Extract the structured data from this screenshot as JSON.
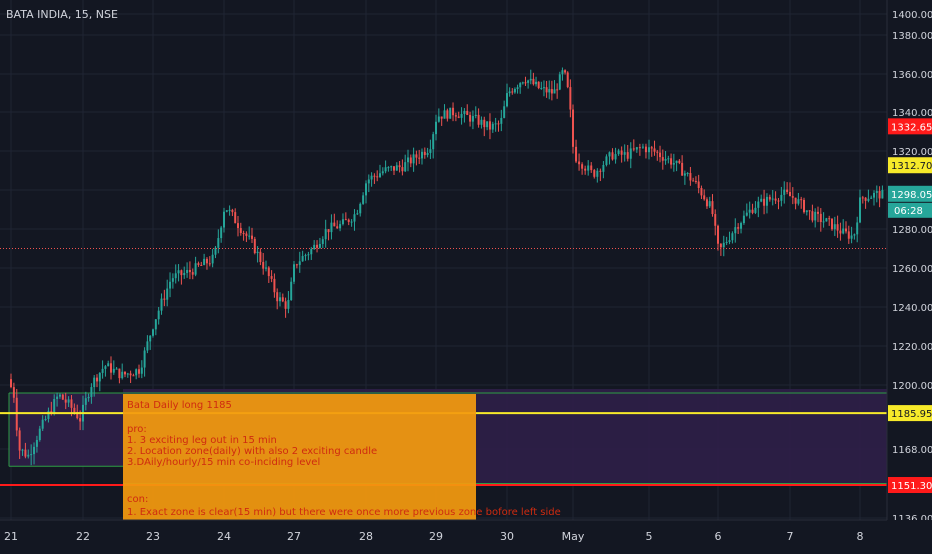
{
  "header": {
    "symbol_title": "BATA INDIA, 15, NSE"
  },
  "colors": {
    "background": "#131722",
    "grid": "#1f2433",
    "up_candle": "#26a69a",
    "down_candle": "#ef5350",
    "zone_fill": "#2f1f48",
    "zone_border": "#2e9e45",
    "yellow_line": "#f7ea2a",
    "red_line": "#ff1a1a",
    "note_fill": "#f39a0f",
    "note_text": "#cf2b10",
    "axis_text": "#d1d4dc"
  },
  "chart_data": {
    "type": "candlestick",
    "title": "BATA INDIA, 15, NSE",
    "x_ticks": [
      "21",
      "22",
      "23",
      "24",
      "27",
      "28",
      "29",
      "30",
      "May",
      "5",
      "6",
      "7",
      "8"
    ],
    "y_ticks": [
      1136,
      1168,
      1200,
      1220,
      1240,
      1260,
      1280,
      1300,
      1320,
      1340,
      1360,
      1380,
      1400
    ],
    "y_tick_labels": [
      "1136.00",
      "1168.00",
      "1200.00",
      "1220.00",
      "1240.00",
      "1260.00",
      "1280.00",
      "1300.00",
      "1320.00",
      "1340.00",
      "1360.00",
      "1380.00",
      "1400.00"
    ],
    "ylim": [
      1130,
      1410
    ],
    "grid": true,
    "price_path": [
      [
        0,
        1203
      ],
      [
        0.08,
        1195
      ],
      [
        0.15,
        1168
      ],
      [
        0.28,
        1165
      ],
      [
        0.45,
        1178
      ],
      [
        0.7,
        1195
      ],
      [
        0.85,
        1190
      ],
      [
        1.0,
        1183
      ],
      [
        1.15,
        1200
      ],
      [
        1.35,
        1210
      ],
      [
        1.6,
        1205
      ],
      [
        1.85,
        1208
      ],
      [
        2.05,
        1232
      ],
      [
        2.3,
        1255
      ],
      [
        2.55,
        1258
      ],
      [
        2.75,
        1262
      ],
      [
        2.9,
        1265
      ],
      [
        3.05,
        1292
      ],
      [
        3.25,
        1282
      ],
      [
        3.45,
        1272
      ],
      [
        3.65,
        1258
      ],
      [
        3.8,
        1245
      ],
      [
        3.95,
        1240
      ],
      [
        4.05,
        1262
      ],
      [
        4.3,
        1270
      ],
      [
        4.5,
        1280
      ],
      [
        4.7,
        1282
      ],
      [
        4.9,
        1288
      ],
      [
        5.05,
        1305
      ],
      [
        5.3,
        1310
      ],
      [
        5.55,
        1312
      ],
      [
        5.8,
        1318
      ],
      [
        5.95,
        1322
      ],
      [
        6.05,
        1338
      ],
      [
        6.3,
        1340
      ],
      [
        6.6,
        1336
      ],
      [
        6.8,
        1332
      ],
      [
        6.95,
        1334
      ],
      [
        7.05,
        1350
      ],
      [
        7.3,
        1358
      ],
      [
        7.55,
        1352
      ],
      [
        7.75,
        1350
      ],
      [
        7.9,
        1362
      ],
      [
        7.98,
        1348
      ],
      [
        8.05,
        1318
      ],
      [
        8.3,
        1308
      ],
      [
        8.55,
        1318
      ],
      [
        8.75,
        1318
      ],
      [
        8.95,
        1322
      ],
      [
        9.1,
        1320
      ],
      [
        9.4,
        1314
      ],
      [
        9.7,
        1304
      ],
      [
        9.85,
        1296
      ],
      [
        9.95,
        1290
      ],
      [
        10.05,
        1268
      ],
      [
        10.3,
        1282
      ],
      [
        10.55,
        1292
      ],
      [
        10.8,
        1296
      ],
      [
        10.95,
        1298
      ],
      [
        11.1,
        1296
      ],
      [
        11.35,
        1287
      ],
      [
        11.6,
        1283
      ],
      [
        11.8,
        1278
      ],
      [
        11.95,
        1276
      ],
      [
        12.05,
        1296
      ],
      [
        12.3,
        1298
      ],
      [
        12.4,
        1297
      ]
    ],
    "annotations": {
      "current_price": "1298.05",
      "countdown": "06:28",
      "level_red_high": "1332.65",
      "level_yellow_mid": "1312.70",
      "level_yellow_zone": "1185.95",
      "level_red_low": "1151.30",
      "red_high_value": 1332.65,
      "yellow_mid_value": 1312.7,
      "yellow_zone_value": 1185.95,
      "red_low_value": 1151.3,
      "current_value": 1298.05,
      "dotted_level_value": 1270,
      "zone_low": 1152,
      "zone_high": 1198
    }
  },
  "note": {
    "title": "Bata Daily long 1185",
    "pro_heading": "pro:",
    "pro_1": "1. 3 exciting  leg out in 15 min",
    "pro_2": "2. Location zone(daily) with also 2 exciting candle",
    "pro_3": "3.DAily/hourly/15 min co-inciding level",
    "con_heading": "con:",
    "con_1": "1. Exact zone is clear(15 min) but there were once more previous zone bofore left side"
  }
}
